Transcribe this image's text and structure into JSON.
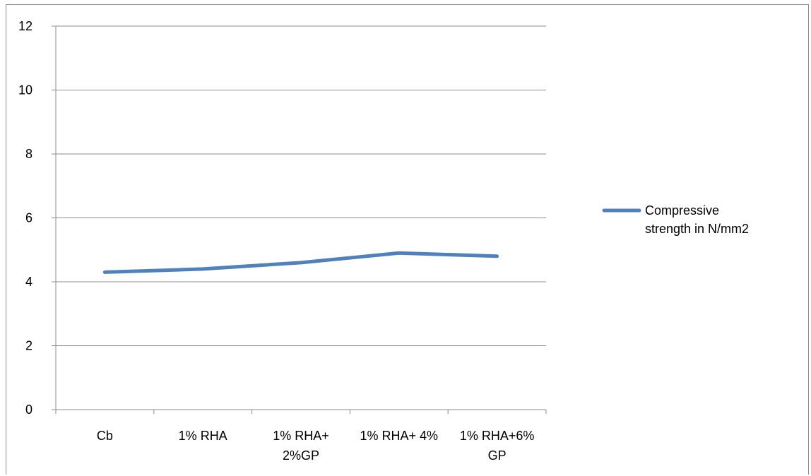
{
  "chart_data": {
    "type": "line",
    "categories": [
      [
        "Cb"
      ],
      [
        "1% RHA"
      ],
      [
        "1%  RHA+",
        "2%GP"
      ],
      [
        "1% RHA+ 4%"
      ],
      [
        "1% RHA+6%",
        "GP"
      ]
    ],
    "series": [
      {
        "name": "Compressive strength in N/mm2",
        "name_lines": [
          "Compressive",
          "strength in N/mm2"
        ],
        "values": [
          4.3,
          4.4,
          4.6,
          4.9,
          4.8
        ],
        "color": "#4f81bd"
      }
    ],
    "yticks": [
      "0",
      "2",
      "4",
      "6",
      "8",
      "10",
      "12"
    ],
    "ylim": [
      0,
      12
    ],
    "grid": true,
    "legend": "right",
    "colors": {
      "grid": "#8c8c8c",
      "axis": "#8c8c8c",
      "frame": "#8c8c8c"
    }
  }
}
